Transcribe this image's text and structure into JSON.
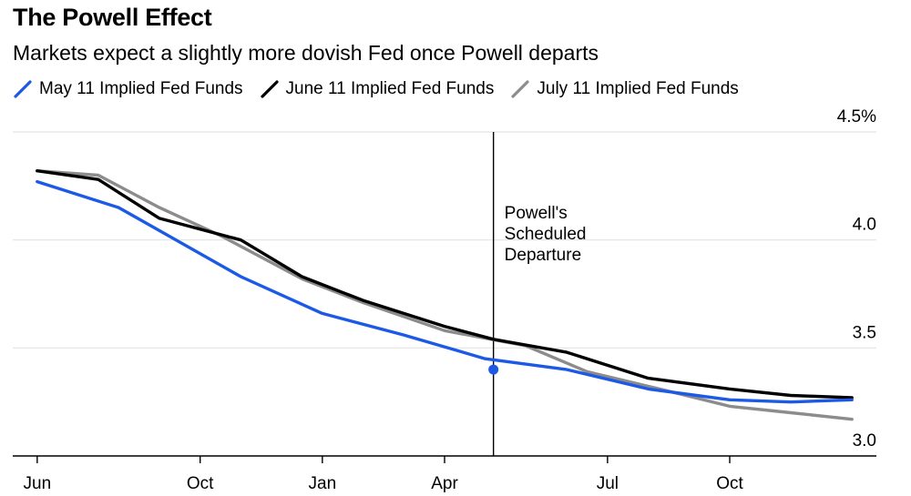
{
  "chart_data": {
    "type": "line",
    "title": "The Powell Effect",
    "subtitle": "Markets expect a slightly more dovish Fed once Powell departs",
    "x_labels": [
      "Jun",
      "Oct",
      "Jan",
      "Apr",
      "Jul",
      "Oct"
    ],
    "x_label_months": [
      0,
      4,
      7,
      10,
      14,
      17
    ],
    "y_ticks": [
      "4.5%",
      "4.0",
      "3.5",
      "3.0"
    ],
    "ylim": [
      3.0,
      4.5
    ],
    "xlim_months": [
      -0.6,
      20.6
    ],
    "grid": true,
    "legend_position": "top-left",
    "series": [
      {
        "name": "May 11 Implied Fed Funds",
        "color": "#1c5ae6",
        "x": [
          0,
          2,
          5,
          7,
          9,
          11,
          13,
          15,
          17,
          18.5,
          20
        ],
        "y": [
          4.27,
          4.15,
          3.83,
          3.66,
          3.56,
          3.45,
          3.4,
          3.31,
          3.26,
          3.25,
          3.26
        ]
      },
      {
        "name": "June 11 Implied Fed Funds",
        "color": "#000000",
        "x": [
          0,
          1.5,
          3,
          5,
          6.5,
          8,
          10,
          11.2,
          13,
          15,
          17,
          18.5,
          20
        ],
        "y": [
          4.32,
          4.28,
          4.1,
          4.0,
          3.83,
          3.72,
          3.6,
          3.54,
          3.48,
          3.36,
          3.31,
          3.28,
          3.27
        ]
      },
      {
        "name": "July 11 Implied Fed Funds",
        "color": "#8c8c8c",
        "x": [
          0,
          1.5,
          3,
          4.5,
          6.5,
          8,
          10,
          12,
          13.5,
          15.5,
          17,
          18.5,
          20
        ],
        "y": [
          4.32,
          4.3,
          4.15,
          4.02,
          3.82,
          3.71,
          3.58,
          3.51,
          3.39,
          3.3,
          3.23,
          3.2,
          3.17
        ]
      }
    ],
    "annotation": {
      "x": 11.2,
      "lines": [
        "Powell's",
        "Scheduled",
        "Departure"
      ]
    },
    "marker": {
      "series": 0,
      "x": 11.2,
      "y": 3.4
    }
  }
}
